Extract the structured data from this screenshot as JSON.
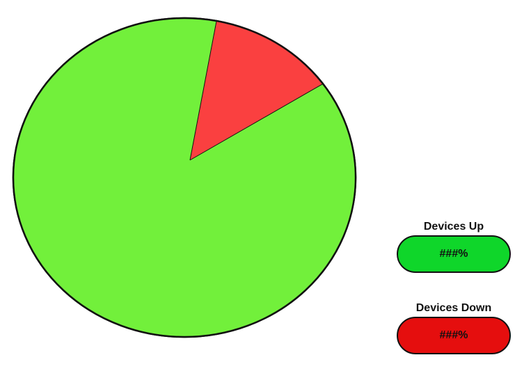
{
  "chart_data": {
    "type": "pie",
    "series": [
      {
        "name": "Devices Up",
        "value": 88,
        "color": "#72f03b"
      },
      {
        "name": "Devices Down",
        "value": 12,
        "color": "#fa4040"
      }
    ],
    "start_angle_deg": -36
  },
  "legend": {
    "up": {
      "label": "Devices Up",
      "value": "###%",
      "color": "#0fd62a"
    },
    "down": {
      "label": "Devices Down",
      "value": "###%",
      "color": "#e50e0e"
    }
  }
}
